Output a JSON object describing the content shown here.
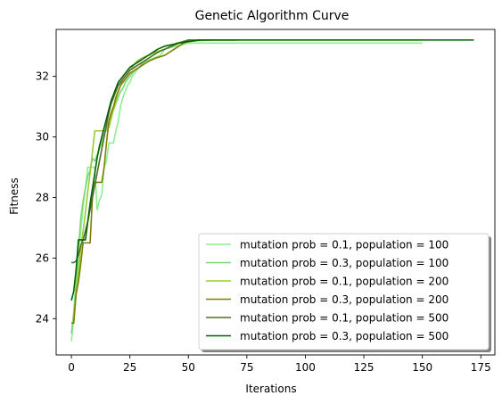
{
  "chart_data": {
    "type": "line",
    "title": "Genetic Algorithm Curve",
    "xlabel": "Iterations",
    "ylabel": "Fitness",
    "xlim": [
      -6.5,
      181
    ],
    "ylim": [
      22.8,
      33.55
    ],
    "xticks": [
      0,
      25,
      50,
      75,
      100,
      125,
      150,
      175
    ],
    "yticks": [
      24,
      26,
      28,
      30,
      32
    ],
    "grid": false,
    "legend_position": "lower-right",
    "series": [
      {
        "name": "mutation prob = 0.1, population = 100",
        "color": "#90ee90",
        "points": [
          [
            0,
            23.25
          ],
          [
            1,
            24.0
          ],
          [
            2,
            24.9
          ],
          [
            3,
            26.0
          ],
          [
            4,
            26.9
          ],
          [
            5,
            27.7
          ],
          [
            6,
            28.3
          ],
          [
            7,
            29.0
          ],
          [
            8,
            29.0
          ],
          [
            9,
            29.0
          ],
          [
            10,
            29.0
          ],
          [
            11,
            27.6
          ],
          [
            12,
            27.9
          ],
          [
            13,
            28.1
          ],
          [
            14,
            29.0
          ],
          [
            15,
            29.2
          ],
          [
            16,
            29.8
          ],
          [
            17,
            29.8
          ],
          [
            18,
            29.8
          ],
          [
            19,
            30.2
          ],
          [
            20,
            30.5
          ],
          [
            21,
            31.0
          ],
          [
            22,
            31.3
          ],
          [
            23,
            31.5
          ],
          [
            24,
            31.7
          ],
          [
            25,
            31.8
          ],
          [
            26,
            32.0
          ],
          [
            27,
            32.1
          ],
          [
            28,
            32.2
          ],
          [
            29,
            32.3
          ],
          [
            30,
            32.4
          ],
          [
            32,
            32.5
          ],
          [
            35,
            32.6
          ],
          [
            38,
            32.7
          ],
          [
            40,
            32.9
          ],
          [
            45,
            33.0
          ],
          [
            50,
            33.1
          ],
          [
            60,
            33.1
          ],
          [
            80,
            33.1
          ],
          [
            100,
            33.1
          ],
          [
            120,
            33.1
          ],
          [
            140,
            33.1
          ],
          [
            150,
            33.1
          ]
        ]
      },
      {
        "name": "mutation prob = 0.3, population = 100",
        "color": "#7cd67c",
        "points": [
          [
            0,
            23.5
          ],
          [
            1,
            24.2
          ],
          [
            2,
            25.2
          ],
          [
            3,
            26.3
          ],
          [
            4,
            27.3
          ],
          [
            5,
            27.9
          ],
          [
            6,
            28.3
          ],
          [
            7,
            28.7
          ],
          [
            8,
            28.9
          ],
          [
            9,
            29.3
          ],
          [
            10,
            29.2
          ],
          [
            11,
            29.4
          ],
          [
            12,
            29.6
          ],
          [
            13,
            29.8
          ],
          [
            14,
            30.1
          ],
          [
            15,
            30.3
          ],
          [
            16,
            30.5
          ],
          [
            17,
            30.7
          ],
          [
            18,
            30.9
          ],
          [
            19,
            31.1
          ],
          [
            20,
            31.3
          ],
          [
            21,
            31.5
          ],
          [
            22,
            31.6
          ],
          [
            23,
            31.8
          ],
          [
            24,
            31.9
          ],
          [
            25,
            32.0
          ],
          [
            27,
            32.2
          ],
          [
            29,
            32.3
          ],
          [
            31,
            32.5
          ],
          [
            33,
            32.6
          ],
          [
            35,
            32.7
          ],
          [
            37,
            32.8
          ],
          [
            40,
            32.9
          ],
          [
            43,
            33.0
          ],
          [
            46,
            33.1
          ],
          [
            50,
            33.15
          ],
          [
            55,
            33.18
          ],
          [
            60,
            33.2
          ],
          [
            72,
            33.2
          ]
        ]
      },
      {
        "name": "mutation prob = 0.1, population = 200",
        "color": "#9acd32",
        "points": [
          [
            0,
            23.85
          ],
          [
            1,
            23.85
          ],
          [
            2,
            24.8
          ],
          [
            3,
            25.5
          ],
          [
            4,
            26.3
          ],
          [
            5,
            26.9
          ],
          [
            6,
            27.5
          ],
          [
            7,
            28.2
          ],
          [
            8,
            28.8
          ],
          [
            9,
            29.5
          ],
          [
            10,
            30.2
          ],
          [
            11,
            30.2
          ],
          [
            12,
            30.2
          ],
          [
            13,
            30.2
          ],
          [
            14,
            30.2
          ],
          [
            15,
            30.2
          ],
          [
            16,
            30.3
          ],
          [
            17,
            30.6
          ],
          [
            18,
            30.9
          ],
          [
            19,
            31.2
          ],
          [
            20,
            31.5
          ],
          [
            21,
            31.7
          ],
          [
            22,
            31.9
          ],
          [
            23,
            32.0
          ],
          [
            24,
            32.1
          ],
          [
            25,
            32.2
          ],
          [
            26,
            32.3
          ],
          [
            28,
            32.5
          ],
          [
            30,
            32.6
          ],
          [
            33,
            32.7
          ],
          [
            36,
            32.8
          ],
          [
            40,
            32.9
          ],
          [
            45,
            33.1
          ],
          [
            50,
            33.2
          ],
          [
            60,
            33.2
          ],
          [
            80,
            33.2
          ],
          [
            100,
            33.2
          ],
          [
            120,
            33.2
          ],
          [
            140,
            33.2
          ],
          [
            150,
            33.2
          ]
        ]
      },
      {
        "name": "mutation prob = 0.3, population = 200",
        "color": "#808000",
        "points": [
          [
            0,
            23.85
          ],
          [
            1,
            23.85
          ],
          [
            2,
            24.8
          ],
          [
            3,
            25.2
          ],
          [
            4,
            25.8
          ],
          [
            5,
            26.5
          ],
          [
            6,
            26.5
          ],
          [
            7,
            26.5
          ],
          [
            8,
            26.5
          ],
          [
            9,
            28.0
          ],
          [
            10,
            28.5
          ],
          [
            11,
            28.5
          ],
          [
            12,
            28.5
          ],
          [
            13,
            28.5
          ],
          [
            14,
            29.0
          ],
          [
            15,
            29.8
          ],
          [
            16,
            30.5
          ],
          [
            17,
            30.8
          ],
          [
            18,
            31.0
          ],
          [
            19,
            31.3
          ],
          [
            20,
            31.5
          ],
          [
            21,
            31.7
          ],
          [
            22,
            31.8
          ],
          [
            23,
            31.9
          ],
          [
            24,
            32.0
          ],
          [
            25,
            32.1
          ],
          [
            27,
            32.2
          ],
          [
            29,
            32.3
          ],
          [
            31,
            32.4
          ],
          [
            33,
            32.5
          ],
          [
            36,
            32.6
          ],
          [
            38,
            32.65
          ],
          [
            40,
            32.7
          ],
          [
            42,
            32.8
          ],
          [
            44,
            32.9
          ],
          [
            46,
            33.0
          ],
          [
            48,
            33.1
          ],
          [
            50,
            33.15
          ],
          [
            55,
            33.2
          ],
          [
            60,
            33.2
          ],
          [
            70,
            33.2
          ]
        ]
      },
      {
        "name": "mutation prob = 0.1, population = 500",
        "color": "#556b2f",
        "points": [
          [
            0,
            25.85
          ],
          [
            1,
            25.85
          ],
          [
            2,
            25.9
          ],
          [
            3,
            26.1
          ],
          [
            4,
            26.4
          ],
          [
            5,
            26.6
          ],
          [
            6,
            26.9
          ],
          [
            7,
            27.2
          ],
          [
            8,
            27.6
          ],
          [
            9,
            28.0
          ],
          [
            10,
            28.4
          ],
          [
            11,
            28.8
          ],
          [
            12,
            29.2
          ],
          [
            13,
            29.6
          ],
          [
            14,
            30.0
          ],
          [
            15,
            30.4
          ],
          [
            16,
            30.8
          ],
          [
            17,
            31.1
          ],
          [
            18,
            31.3
          ],
          [
            19,
            31.5
          ],
          [
            20,
            31.7
          ],
          [
            21,
            31.8
          ],
          [
            22,
            31.9
          ],
          [
            23,
            32.0
          ],
          [
            24,
            32.1
          ],
          [
            25,
            32.2
          ],
          [
            27,
            32.3
          ],
          [
            29,
            32.4
          ],
          [
            31,
            32.5
          ],
          [
            33,
            32.6
          ],
          [
            35,
            32.7
          ],
          [
            37,
            32.8
          ],
          [
            40,
            32.9
          ],
          [
            43,
            33.0
          ],
          [
            46,
            33.1
          ],
          [
            50,
            33.2
          ],
          [
            55,
            33.2
          ],
          [
            60,
            33.2
          ]
        ]
      },
      {
        "name": "mutation prob = 0.3, population = 500",
        "color": "#006400",
        "points": [
          [
            0,
            24.6
          ],
          [
            1,
            24.9
          ],
          [
            2,
            25.6
          ],
          [
            3,
            26.6
          ],
          [
            4,
            26.6
          ],
          [
            5,
            26.6
          ],
          [
            6,
            26.6
          ],
          [
            7,
            27.2
          ],
          [
            8,
            27.8
          ],
          [
            9,
            28.3
          ],
          [
            10,
            28.8
          ],
          [
            11,
            29.3
          ],
          [
            12,
            29.7
          ],
          [
            13,
            30.0
          ],
          [
            14,
            30.3
          ],
          [
            15,
            30.6
          ],
          [
            16,
            30.9
          ],
          [
            17,
            31.2
          ],
          [
            18,
            31.4
          ],
          [
            19,
            31.6
          ],
          [
            20,
            31.8
          ],
          [
            21,
            31.9
          ],
          [
            22,
            32.0
          ],
          [
            23,
            32.1
          ],
          [
            24,
            32.2
          ],
          [
            25,
            32.3
          ],
          [
            27,
            32.4
          ],
          [
            29,
            32.5
          ],
          [
            31,
            32.6
          ],
          [
            33,
            32.7
          ],
          [
            35,
            32.8
          ],
          [
            37,
            32.9
          ],
          [
            40,
            33.0
          ],
          [
            43,
            33.05
          ],
          [
            46,
            33.1
          ],
          [
            50,
            33.15
          ],
          [
            55,
            33.2
          ],
          [
            60,
            33.2
          ],
          [
            80,
            33.2
          ],
          [
            100,
            33.2
          ],
          [
            120,
            33.2
          ],
          [
            140,
            33.2
          ],
          [
            160,
            33.2
          ],
          [
            172,
            33.2
          ]
        ]
      }
    ]
  }
}
